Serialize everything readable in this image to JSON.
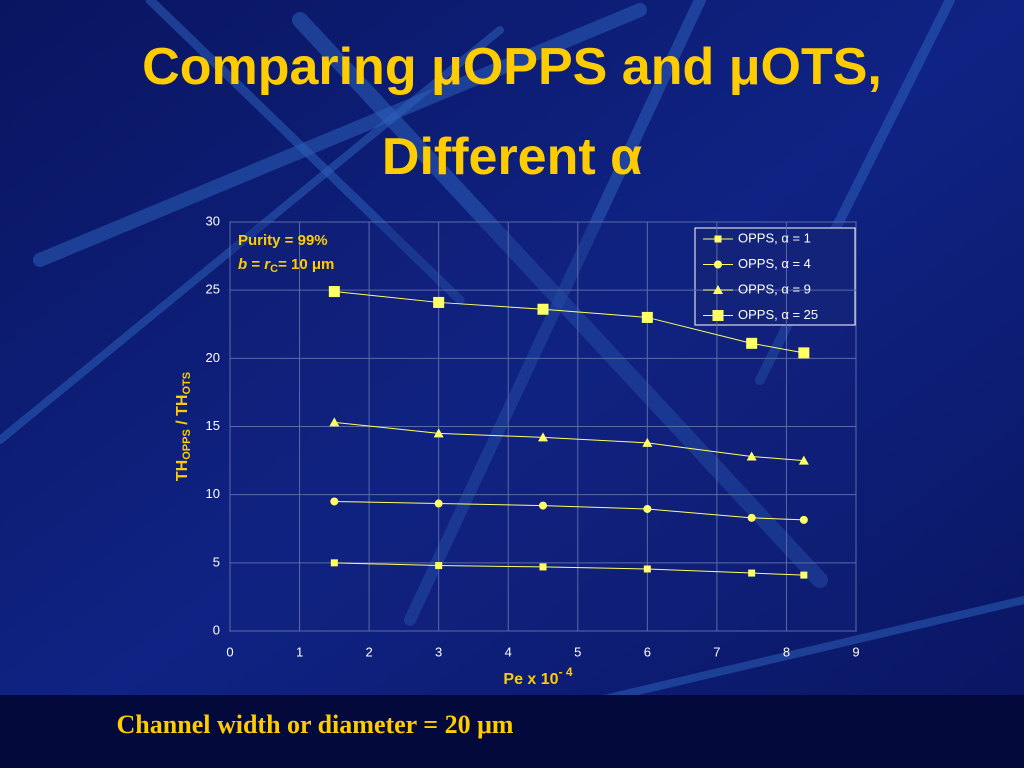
{
  "chart_data": {
    "type": "line",
    "title": "Comparing μOPPS and μOTS, Different α",
    "y_label": [
      "TH",
      "OPPS",
      " / TH",
      "OTS"
    ],
    "x_label": [
      "Pe x 10",
      "- 4"
    ],
    "annotations": [
      [
        "Purity = 99%"
      ],
      [
        "b",
        " = ",
        "r",
        "C",
        "= 10 μm"
      ]
    ],
    "footer": "Channel width or diameter = 20 μm",
    "x": [
      1.5,
      3,
      4.5,
      6,
      7.5,
      8.25
    ],
    "series": [
      {
        "name": "OPPS, α = 1",
        "color": "#ffff66",
        "marker": "square",
        "values": [
          5.0,
          4.8,
          4.7,
          4.55,
          4.25,
          4.1
        ]
      },
      {
        "name": "OPPS, α = 4",
        "color": "#ffff66",
        "marker": "circle",
        "values": [
          9.5,
          9.35,
          9.2,
          8.95,
          8.3,
          8.15
        ]
      },
      {
        "name": "OPPS, α = 9",
        "color": "#ffff66",
        "marker": "triangle",
        "values": [
          15.3,
          14.5,
          14.2,
          13.8,
          12.8,
          12.5
        ]
      },
      {
        "name": "OPPS, α = 25",
        "color": "#ffff66",
        "marker": "big-square",
        "values": [
          24.9,
          24.1,
          23.6,
          23.0,
          21.1,
          20.4
        ]
      }
    ],
    "xlim": [
      0,
      9
    ],
    "xticks": [
      0,
      1,
      2,
      3,
      4,
      5,
      6,
      7,
      8,
      9
    ],
    "ylim": [
      0,
      30
    ],
    "yticks": [
      0,
      5,
      10,
      15,
      20,
      25,
      30
    ],
    "grid": true,
    "legend": "top-right"
  }
}
